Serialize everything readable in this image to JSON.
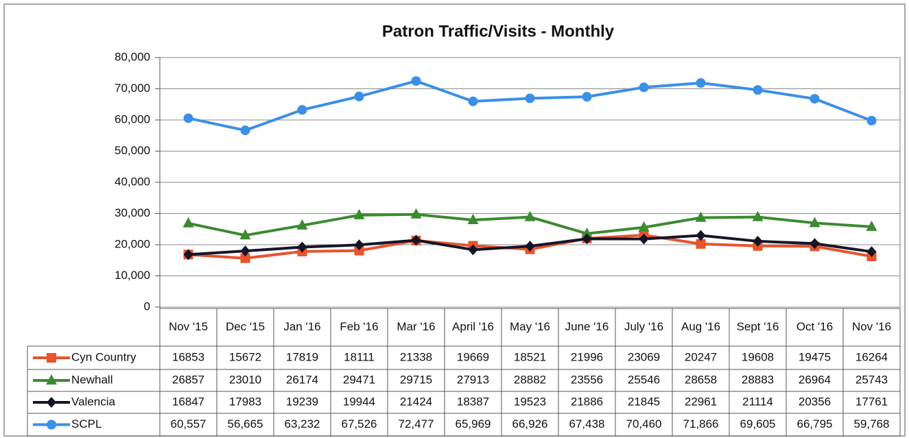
{
  "chart_data": {
    "type": "line",
    "title": "Patron Traffic/Visits - Monthly",
    "categories": [
      "Nov '15",
      "Dec '15",
      "Jan '16",
      "Feb '16",
      "Mar '16",
      "April '16",
      "May '16",
      "June '16",
      "July '16",
      "Aug '16",
      "Sept '16",
      "Oct '16",
      "Nov '16"
    ],
    "ylim": [
      0,
      80000
    ],
    "yticks": [
      0,
      {
        "value": 10000,
        "label": "10,000"
      },
      {
        "value": 20000,
        "label": "20,000"
      },
      {
        "value": 30000,
        "label": "30,000"
      },
      {
        "value": 40000,
        "label": "40,000"
      },
      {
        "value": 50000,
        "label": "50,000"
      },
      {
        "value": 60000,
        "label": "60,000"
      },
      {
        "value": 70000,
        "label": "70,000"
      },
      {
        "value": 80000,
        "label": "80,000"
      }
    ],
    "grid": true,
    "series": [
      {
        "name": "Cyn Country",
        "color": "#e8542c",
        "marker": "square",
        "values": [
          16853,
          15672,
          17819,
          18111,
          21338,
          19669,
          18521,
          21996,
          23069,
          20247,
          19608,
          19475,
          16264
        ]
      },
      {
        "name": "Newhall",
        "color": "#3b8a30",
        "marker": "triangle",
        "values": [
          26857,
          23010,
          26174,
          29471,
          29715,
          27913,
          28882,
          23556,
          25546,
          28658,
          28883,
          26964,
          25743
        ]
      },
      {
        "name": "Valencia",
        "color": "#15152a",
        "marker": "diamond",
        "values": [
          16847,
          17983,
          19239,
          19944,
          21424,
          18387,
          19523,
          21886,
          21845,
          22961,
          21114,
          20356,
          17761
        ]
      },
      {
        "name": "SCPL",
        "color": "#3a8fe6",
        "marker": "circle",
        "values": [
          60557,
          56665,
          63232,
          67526,
          72477,
          65969,
          66926,
          67438,
          70460,
          71866,
          69605,
          66795,
          59768
        ],
        "value_labels": [
          "60,557",
          "56,665",
          "63,232",
          "67,526",
          "72,477",
          "65,969",
          "66,926",
          "67,438",
          "70,460",
          "71,866",
          "69,605",
          "66,795",
          "59,768"
        ]
      }
    ]
  }
}
